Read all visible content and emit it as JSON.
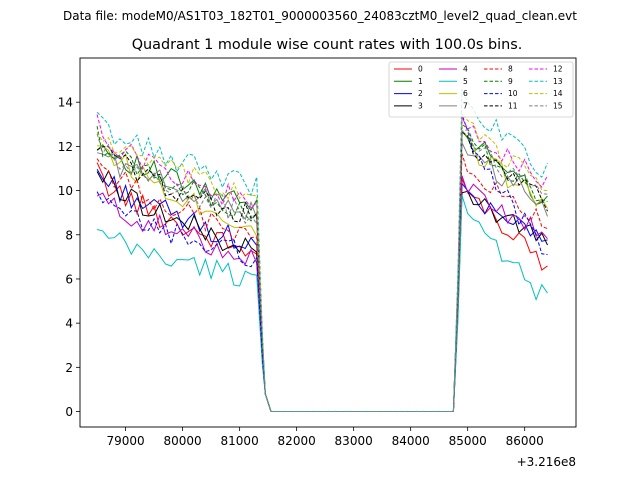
{
  "chart_data": {
    "type": "line",
    "suptitle": "Data file: modeM0/AS1T03_182T01_9000003560_24083cztM0_level2_quad_clean.evt",
    "title": "Quadrant 1 module wise count rates with 100.0s bins.",
    "xlabel": "",
    "ylabel": "",
    "x_offset_label": "+3.216e8",
    "xlim": [
      78200,
      86900
    ],
    "ylim": [
      -0.7,
      16
    ],
    "xticks": [
      79000,
      80000,
      81000,
      82000,
      83000,
      84000,
      85000,
      86000
    ],
    "yticks": [
      0,
      2,
      4,
      6,
      8,
      10,
      12,
      14
    ],
    "legend_position": "upper right",
    "legend_columns": 4,
    "note": "Per-module curves follow a common shape; each series = base level at start, level at end of first active segment, peak after gap, level at end.",
    "time_shape": {
      "active1": [
        78500,
        81300
      ],
      "gap_zero": [
        81550,
        84750
      ],
      "active2": [
        84900,
        86450
      ]
    },
    "series": [
      {
        "name": "0",
        "color": "#ff0000",
        "dash": "solid",
        "start": 10.8,
        "mid": 7.1,
        "peak": 10.3,
        "end": 6.6
      },
      {
        "name": "1",
        "color": "#008000",
        "dash": "solid",
        "start": 12.3,
        "mid": 9.2,
        "peak": 12.9,
        "end": 9.4
      },
      {
        "name": "2",
        "color": "#0000ff",
        "dash": "solid",
        "start": 10.9,
        "mid": 7.5,
        "peak": 10.4,
        "end": 7.6
      },
      {
        "name": "3",
        "color": "#000000",
        "dash": "solid",
        "start": 11.0,
        "mid": 7.2,
        "peak": 10.2,
        "end": 7.5
      },
      {
        "name": "4",
        "color": "#bf00bf",
        "dash": "solid",
        "start": 9.8,
        "mid": 7.0,
        "peak": 10.6,
        "end": 7.8
      },
      {
        "name": "5",
        "color": "#00bfbf",
        "dash": "solid",
        "start": 8.1,
        "mid": 6.0,
        "peak": 9.3,
        "end": 5.0
      },
      {
        "name": "6",
        "color": "#bfbf00",
        "dash": "solid",
        "start": 12.4,
        "mid": 8.3,
        "peak": 12.3,
        "end": 9.4
      },
      {
        "name": "7",
        "color": "#808080",
        "dash": "solid",
        "start": 11.9,
        "mid": 9.0,
        "peak": 12.2,
        "end": 9.2
      },
      {
        "name": "8",
        "color": "#ff0000",
        "dash": "dashed",
        "start": 11.4,
        "mid": 7.8,
        "peak": 11.4,
        "end": 8.3
      },
      {
        "name": "9",
        "color": "#008000",
        "dash": "dashed",
        "start": 12.4,
        "mid": 9.0,
        "peak": 12.9,
        "end": 9.6
      },
      {
        "name": "10",
        "color": "#0000ff",
        "dash": "dashed",
        "start": 9.6,
        "mid": 7.0,
        "peak": 13.0,
        "end": 7.1
      },
      {
        "name": "11",
        "color": "#000000",
        "dash": "dashed",
        "start": 12.2,
        "mid": 8.7,
        "peak": 12.7,
        "end": 9.3
      },
      {
        "name": "12",
        "color": "#ff00ff",
        "dash": "dashed",
        "start": 12.9,
        "mid": 9.3,
        "peak": 13.6,
        "end": 10.1
      },
      {
        "name": "13",
        "color": "#00bfbf",
        "dash": "dashed",
        "start": 13.2,
        "mid": 10.2,
        "peak": 14.4,
        "end": 10.8
      },
      {
        "name": "14",
        "color": "#bfbf00",
        "dash": "dashed",
        "start": 12.7,
        "mid": 9.6,
        "peak": 13.2,
        "end": 10.1
      },
      {
        "name": "15",
        "color": "#808080",
        "dash": "dashed",
        "start": 12.1,
        "mid": 8.8,
        "peak": 12.9,
        "end": 9.5
      }
    ]
  }
}
